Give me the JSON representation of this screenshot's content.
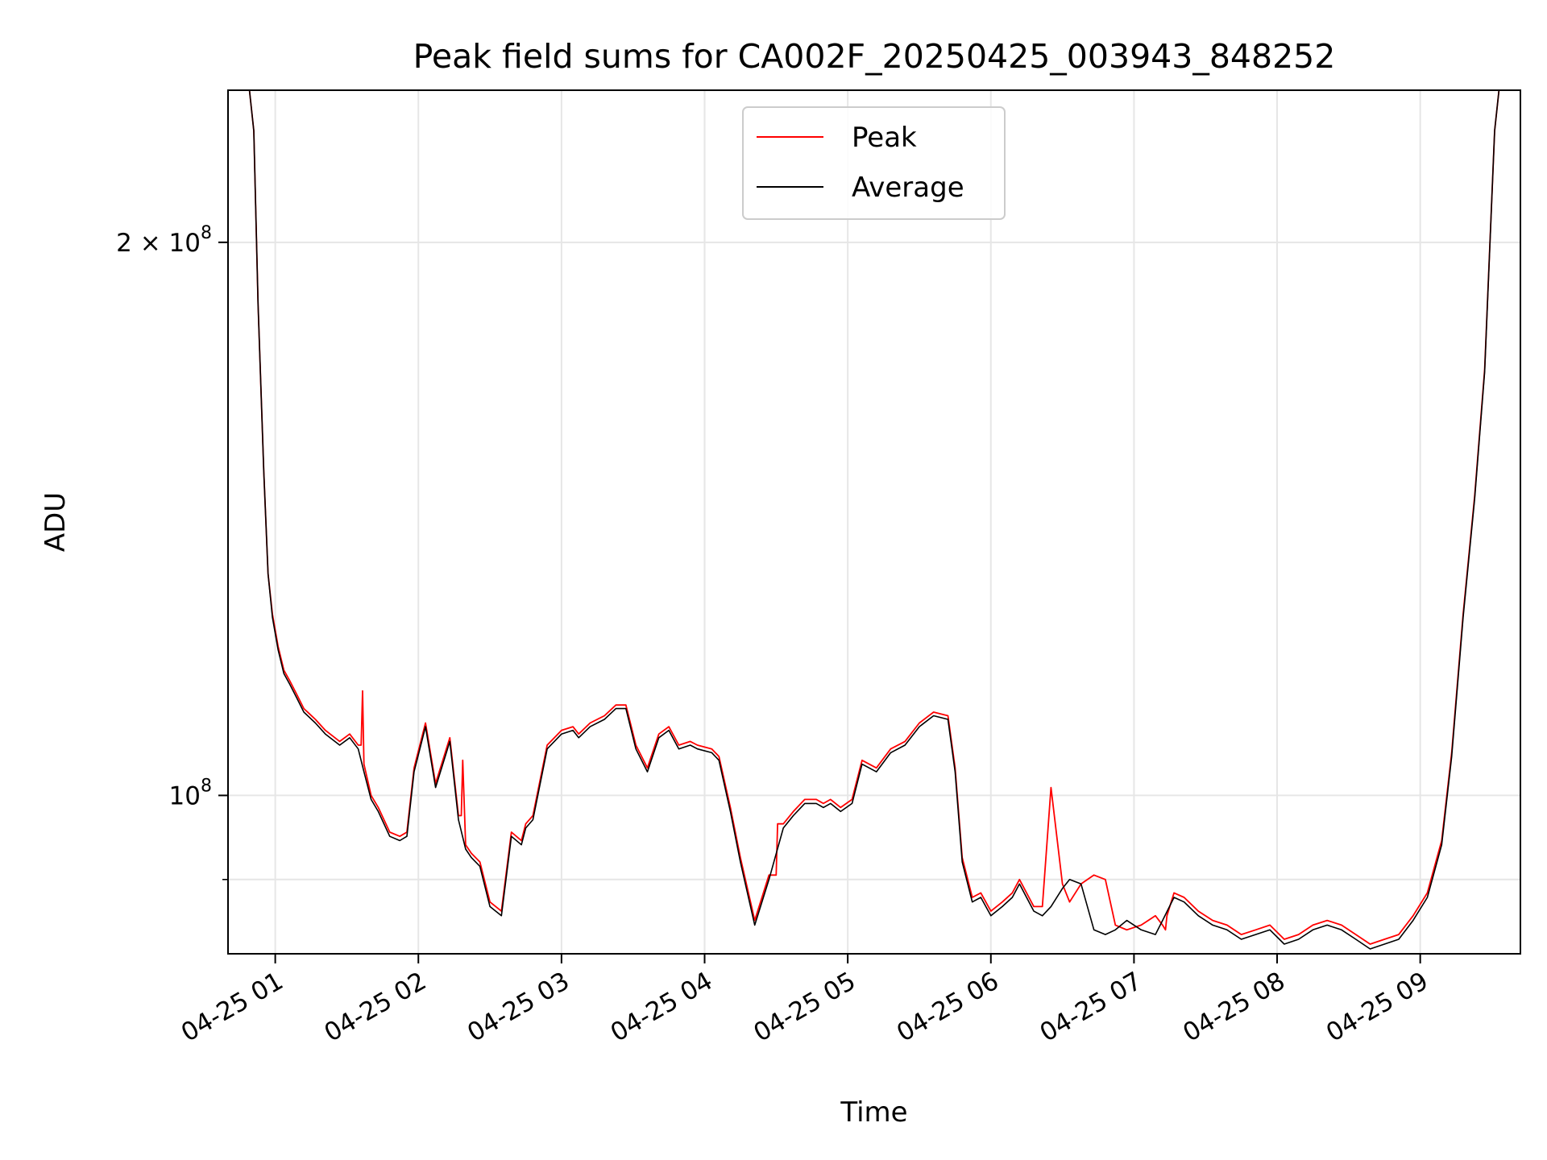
{
  "chart_data": {
    "type": "line",
    "title": "Peak field sums for CA002F_20250425_003943_848252",
    "xlabel": "Time",
    "ylabel": "ADU",
    "x_unit": "hours",
    "x_date_prefix": "2025-04-25",
    "xlim": [
      0.67,
      9.7
    ],
    "ylim": [
      82000000,
      242000000
    ],
    "y_scale": "log",
    "grid": true,
    "legend_position": "upper center",
    "x_ticks": [
      {
        "value": 1,
        "label": "04-25 01"
      },
      {
        "value": 2,
        "label": "04-25 02"
      },
      {
        "value": 3,
        "label": "04-25 03"
      },
      {
        "value": 4,
        "label": "04-25 04"
      },
      {
        "value": 5,
        "label": "04-25 05"
      },
      {
        "value": 6,
        "label": "04-25 06"
      },
      {
        "value": 7,
        "label": "04-25 07"
      },
      {
        "value": 8,
        "label": "04-25 08"
      },
      {
        "value": 9,
        "label": "04-25 09"
      }
    ],
    "y_ticks": [
      {
        "value": 200000000,
        "label": "2 × 10",
        "exp": "8"
      },
      {
        "value": 100000000,
        "label": "10",
        "exp": "8"
      }
    ],
    "y_minor_ticks": [
      90000000
    ],
    "series": [
      {
        "name": "Average",
        "color": "#000000",
        "x": [
          0.67,
          0.82,
          0.85,
          0.88,
          0.92,
          0.95,
          0.98,
          1.02,
          1.06,
          1.1,
          1.15,
          1.2,
          1.28,
          1.35,
          1.45,
          1.52,
          1.58,
          1.62,
          1.67,
          1.72,
          1.8,
          1.87,
          1.92,
          1.97,
          2.05,
          2.12,
          2.22,
          2.28,
          2.33,
          2.37,
          2.43,
          2.5,
          2.58,
          2.65,
          2.72,
          2.75,
          2.8,
          2.9,
          3.0,
          3.08,
          3.12,
          3.2,
          3.3,
          3.38,
          3.45,
          3.52,
          3.6,
          3.68,
          3.75,
          3.82,
          3.9,
          3.95,
          4.05,
          4.1,
          4.18,
          4.25,
          4.35,
          4.45,
          4.55,
          4.62,
          4.7,
          4.78,
          4.83,
          4.88,
          4.95,
          5.03,
          5.1,
          5.2,
          5.3,
          5.4,
          5.5,
          5.6,
          5.7,
          5.75,
          5.8,
          5.87,
          5.93,
          6.0,
          6.08,
          6.15,
          6.2,
          6.3,
          6.36,
          6.42,
          6.5,
          6.55,
          6.63,
          6.72,
          6.8,
          6.87,
          6.95,
          7.05,
          7.15,
          7.2,
          7.28,
          7.35,
          7.45,
          7.55,
          7.65,
          7.75,
          7.85,
          7.95,
          8.05,
          8.15,
          8.25,
          8.35,
          8.45,
          8.55,
          8.65,
          8.75,
          8.85,
          8.95,
          9.05,
          9.15,
          9.22,
          9.3,
          9.38,
          9.45,
          9.52,
          9.55,
          9.7
        ],
        "y": [
          242000000,
          242000000,
          230000000,
          185000000,
          150000000,
          132000000,
          125000000,
          120000000,
          116500000,
          115000000,
          113000000,
          111000000,
          109500000,
          108000000,
          106500000,
          107500000,
          106000000,
          103000000,
          99500000,
          98000000,
          95000000,
          94500000,
          95000000,
          103000000,
          109000000,
          101000000,
          107000000,
          97000000,
          93500000,
          92500000,
          91500000,
          87000000,
          86000000,
          95000000,
          94000000,
          96000000,
          97000000,
          106000000,
          108000000,
          108500000,
          107500000,
          109000000,
          110000000,
          111500000,
          111500000,
          106000000,
          103000000,
          107500000,
          108500000,
          106000000,
          106500000,
          106000000,
          105500000,
          104500000,
          98000000,
          92000000,
          85000000,
          90000000,
          96000000,
          97500000,
          99000000,
          99000000,
          98500000,
          99000000,
          98000000,
          99000000,
          104000000,
          103000000,
          105500000,
          106500000,
          109000000,
          110500000,
          110000000,
          103000000,
          92000000,
          87500000,
          88000000,
          86000000,
          87000000,
          88000000,
          89500000,
          86500000,
          86000000,
          87000000,
          89000000,
          90000000,
          89500000,
          84500000,
          84000000,
          84500000,
          85500000,
          84500000,
          84000000,
          85500000,
          88000000,
          87500000,
          86000000,
          85000000,
          84500000,
          83500000,
          84000000,
          84500000,
          83000000,
          83500000,
          84500000,
          85000000,
          84500000,
          83500000,
          82500000,
          83000000,
          83500000,
          85500000,
          88000000,
          94000000,
          105000000,
          125000000,
          145000000,
          170000000,
          230000000,
          242000000,
          242000000
        ]
      },
      {
        "name": "Peak",
        "color": "#ff0000",
        "x": [
          0.67,
          0.82,
          0.85,
          0.88,
          0.92,
          0.95,
          0.98,
          1.02,
          1.06,
          1.1,
          1.15,
          1.2,
          1.28,
          1.35,
          1.45,
          1.52,
          1.58,
          1.6,
          1.61,
          1.62,
          1.67,
          1.72,
          1.8,
          1.87,
          1.92,
          1.97,
          2.05,
          2.12,
          2.22,
          2.28,
          2.3,
          2.31,
          2.33,
          2.37,
          2.43,
          2.5,
          2.58,
          2.65,
          2.72,
          2.75,
          2.8,
          2.9,
          3.0,
          3.08,
          3.12,
          3.2,
          3.3,
          3.38,
          3.45,
          3.52,
          3.6,
          3.68,
          3.75,
          3.82,
          3.9,
          3.95,
          4.05,
          4.1,
          4.18,
          4.25,
          4.35,
          4.45,
          4.5,
          4.51,
          4.55,
          4.62,
          4.7,
          4.78,
          4.83,
          4.88,
          4.95,
          5.03,
          5.1,
          5.2,
          5.3,
          5.4,
          5.5,
          5.6,
          5.7,
          5.75,
          5.8,
          5.87,
          5.93,
          6.0,
          6.08,
          6.15,
          6.2,
          6.3,
          6.36,
          6.42,
          6.5,
          6.55,
          6.63,
          6.72,
          6.8,
          6.87,
          6.95,
          7.05,
          7.15,
          7.2,
          7.22,
          7.23,
          7.28,
          7.35,
          7.45,
          7.55,
          7.65,
          7.75,
          7.85,
          7.95,
          8.05,
          8.15,
          8.25,
          8.35,
          8.45,
          8.55,
          8.65,
          8.75,
          8.85,
          8.95,
          9.05,
          9.15,
          9.22,
          9.3,
          9.38,
          9.45,
          9.52,
          9.55,
          9.7
        ],
        "y": [
          242000000,
          242000000,
          230000000,
          185000000,
          150000000,
          132000000,
          125500000,
          120500000,
          117000000,
          115500000,
          113500000,
          111500000,
          110000000,
          108500000,
          107000000,
          108000000,
          106500000,
          106500000,
          114000000,
          104000000,
          100000000,
          98500000,
          95500000,
          95000000,
          95500000,
          103500000,
          109500000,
          101500000,
          107500000,
          97500000,
          97500000,
          104500000,
          94000000,
          93000000,
          92000000,
          87500000,
          86500000,
          95500000,
          94500000,
          96500000,
          97500000,
          106500000,
          108500000,
          109000000,
          108000000,
          109500000,
          110500000,
          112000000,
          112000000,
          106500000,
          103500000,
          108000000,
          109000000,
          106500000,
          107000000,
          106500000,
          106000000,
          105000000,
          98500000,
          92500000,
          85500000,
          90500000,
          90500000,
          96500000,
          96500000,
          98000000,
          99500000,
          99500000,
          99000000,
          99500000,
          98500000,
          99500000,
          104500000,
          103500000,
          106000000,
          107000000,
          109500000,
          111000000,
          110500000,
          103500000,
          92500000,
          88000000,
          88500000,
          86500000,
          87500000,
          88500000,
          90000000,
          87000000,
          87000000,
          101000000,
          89500000,
          87500000,
          89500000,
          90500000,
          90000000,
          85000000,
          84500000,
          85000000,
          86000000,
          85000000,
          84500000,
          86000000,
          88500000,
          88000000,
          86500000,
          85500000,
          85000000,
          84000000,
          84500000,
          85000000,
          83500000,
          84000000,
          85000000,
          85500000,
          85000000,
          84000000,
          83000000,
          83500000,
          84000000,
          86000000,
          88500000,
          94500000,
          105500000,
          125500000,
          145500000,
          170500000,
          230000000,
          242000000,
          242000000
        ]
      }
    ]
  }
}
